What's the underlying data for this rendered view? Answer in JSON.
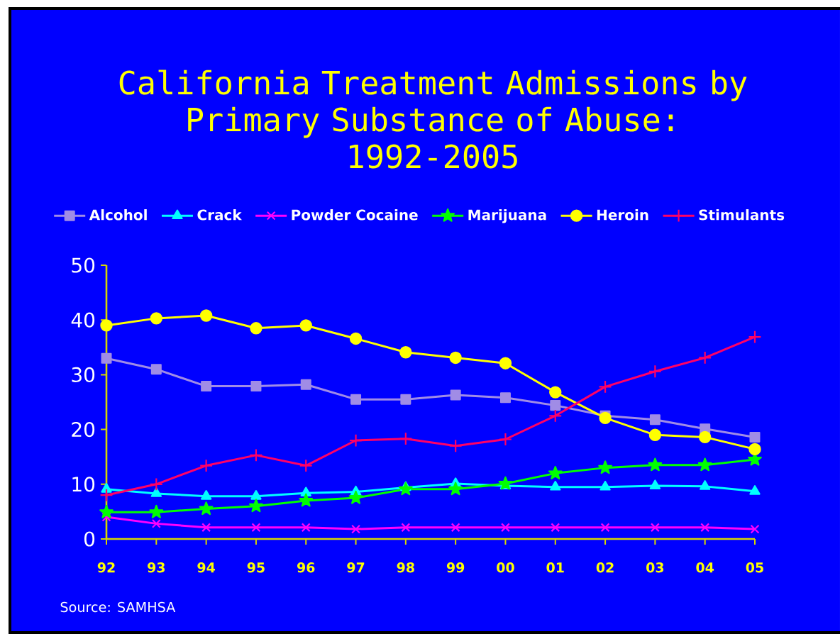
{
  "chart_data": {
    "type": "line",
    "title": "California Treatment Admissions by Primary Substance of Abuse: 1992-2005",
    "categories": [
      "92",
      "93",
      "94",
      "95",
      "96",
      "97",
      "98",
      "99",
      "00",
      "01",
      "02",
      "03",
      "04",
      "05"
    ],
    "series": [
      {
        "name": "Alcohol",
        "color": "#a08ce6",
        "marker": "square",
        "values": [
          33.0,
          31.0,
          27.9,
          27.9,
          28.2,
          25.5,
          25.5,
          26.3,
          25.8,
          24.4,
          22.5,
          21.8,
          20.1,
          18.6
        ]
      },
      {
        "name": "Crack",
        "color": "#00ffff",
        "marker": "triangle",
        "values": [
          9.1,
          8.3,
          7.8,
          7.8,
          8.4,
          8.6,
          9.4,
          10.1,
          9.7,
          9.5,
          9.5,
          9.7,
          9.6,
          8.7
        ]
      },
      {
        "name": "Powder Cocaine",
        "color": "#ff00ff",
        "marker": "cross",
        "values": [
          4.0,
          2.8,
          2.1,
          2.1,
          2.1,
          1.8,
          2.1,
          2.1,
          2.1,
          2.1,
          2.1,
          2.1,
          2.1,
          1.8
        ]
      },
      {
        "name": "Marijuana",
        "color": "#00ff00",
        "marker": "star",
        "values": [
          4.9,
          4.9,
          5.5,
          6.0,
          7.0,
          7.5,
          9.1,
          9.1,
          10.1,
          12.0,
          13.0,
          13.5,
          13.5,
          14.5
        ]
      },
      {
        "name": "Heroin",
        "color": "#ffff00",
        "marker": "circle",
        "values": [
          39.0,
          40.3,
          40.8,
          38.5,
          39.0,
          36.6,
          34.1,
          33.1,
          32.1,
          26.8,
          22.1,
          19.0,
          18.6,
          16.4
        ]
      },
      {
        "name": "Stimulants",
        "color": "#ff0066",
        "marker": "plus",
        "values": [
          8.0,
          10.0,
          13.4,
          15.3,
          13.4,
          18.0,
          18.3,
          17.0,
          18.2,
          22.5,
          27.8,
          30.6,
          33.1,
          36.9
        ]
      }
    ],
    "ylim": [
      0,
      50
    ],
    "yticks": [
      0,
      10,
      20,
      30,
      40,
      50
    ],
    "legend": "top",
    "annotations": [
      "Source: SAMHSA"
    ]
  }
}
